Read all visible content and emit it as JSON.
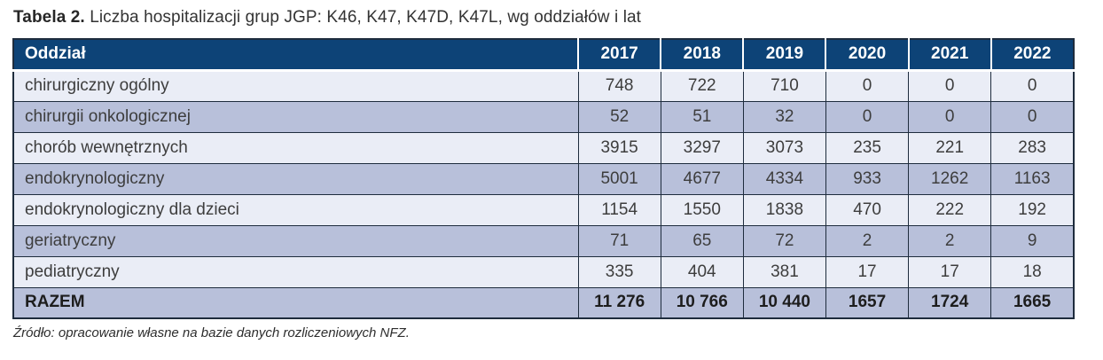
{
  "title": {
    "label": "Tabela 2.",
    "text": " Liczba hospitalizacji grup JGP: K46, K47, K47D, K47L, wg oddziałów i lat"
  },
  "table": {
    "header": {
      "department": "Oddział",
      "years": [
        "2017",
        "2018",
        "2019",
        "2020",
        "2021",
        "2022"
      ]
    },
    "rows": [
      {
        "department": "chirurgiczny ogólny",
        "values": [
          "748",
          "722",
          "710",
          "0",
          "0",
          "0"
        ]
      },
      {
        "department": "chirurgii onkologicznej",
        "values": [
          "52",
          "51",
          "32",
          "0",
          "0",
          "0"
        ]
      },
      {
        "department": "chorób wewnętrznych",
        "values": [
          "3915",
          "3297",
          "3073",
          "235",
          "221",
          "283"
        ]
      },
      {
        "department": "endokrynologiczny",
        "values": [
          "5001",
          "4677",
          "4334",
          "933",
          "1262",
          "1163"
        ]
      },
      {
        "department": "endokrynologiczny dla dzieci",
        "values": [
          "1154",
          "1550",
          "1838",
          "470",
          "222",
          "192"
        ]
      },
      {
        "department": "geriatryczny",
        "values": [
          "71",
          "65",
          "72",
          "2",
          "2",
          "9"
        ]
      },
      {
        "department": "pediatryczny",
        "values": [
          "335",
          "404",
          "381",
          "17",
          "17",
          "18"
        ]
      },
      {
        "department": "RAZEM",
        "values": [
          "11 276",
          "10 766",
          "10 440",
          "1657",
          "1724",
          "1665"
        ]
      }
    ]
  },
  "footer": {
    "source": "Źródło: opracowanie własne na bazie danych rozliczeniowych NFZ."
  },
  "colors": {
    "header_bg": "#0d4377",
    "header_text": "#ffffff",
    "row_light": "#eaedf6",
    "row_dark": "#b8c0da",
    "border": "#1e2c3d"
  },
  "chart_data": {
    "type": "table",
    "title": "Tabela 2. Liczba hospitalizacji grup JGP: K46, K47, K47D, K47L, wg oddziałów i lat",
    "categories": [
      "2017",
      "2018",
      "2019",
      "2020",
      "2021",
      "2022"
    ],
    "series": [
      {
        "name": "chirurgiczny ogólny",
        "values": [
          748,
          722,
          710,
          0,
          0,
          0
        ]
      },
      {
        "name": "chirurgii onkologicznej",
        "values": [
          52,
          51,
          32,
          0,
          0,
          0
        ]
      },
      {
        "name": "chorób wewnętrznych",
        "values": [
          3915,
          3297,
          3073,
          235,
          221,
          283
        ]
      },
      {
        "name": "endokrynologiczny",
        "values": [
          5001,
          4677,
          4334,
          933,
          1262,
          1163
        ]
      },
      {
        "name": "endokrynologiczny dla dzieci",
        "values": [
          1154,
          1550,
          1838,
          470,
          222,
          192
        ]
      },
      {
        "name": "geriatryczny",
        "values": [
          71,
          65,
          72,
          2,
          2,
          9
        ]
      },
      {
        "name": "pediatryczny",
        "values": [
          335,
          404,
          381,
          17,
          17,
          18
        ]
      },
      {
        "name": "RAZEM",
        "values": [
          11276,
          10766,
          10440,
          1657,
          1724,
          1665
        ]
      }
    ]
  }
}
